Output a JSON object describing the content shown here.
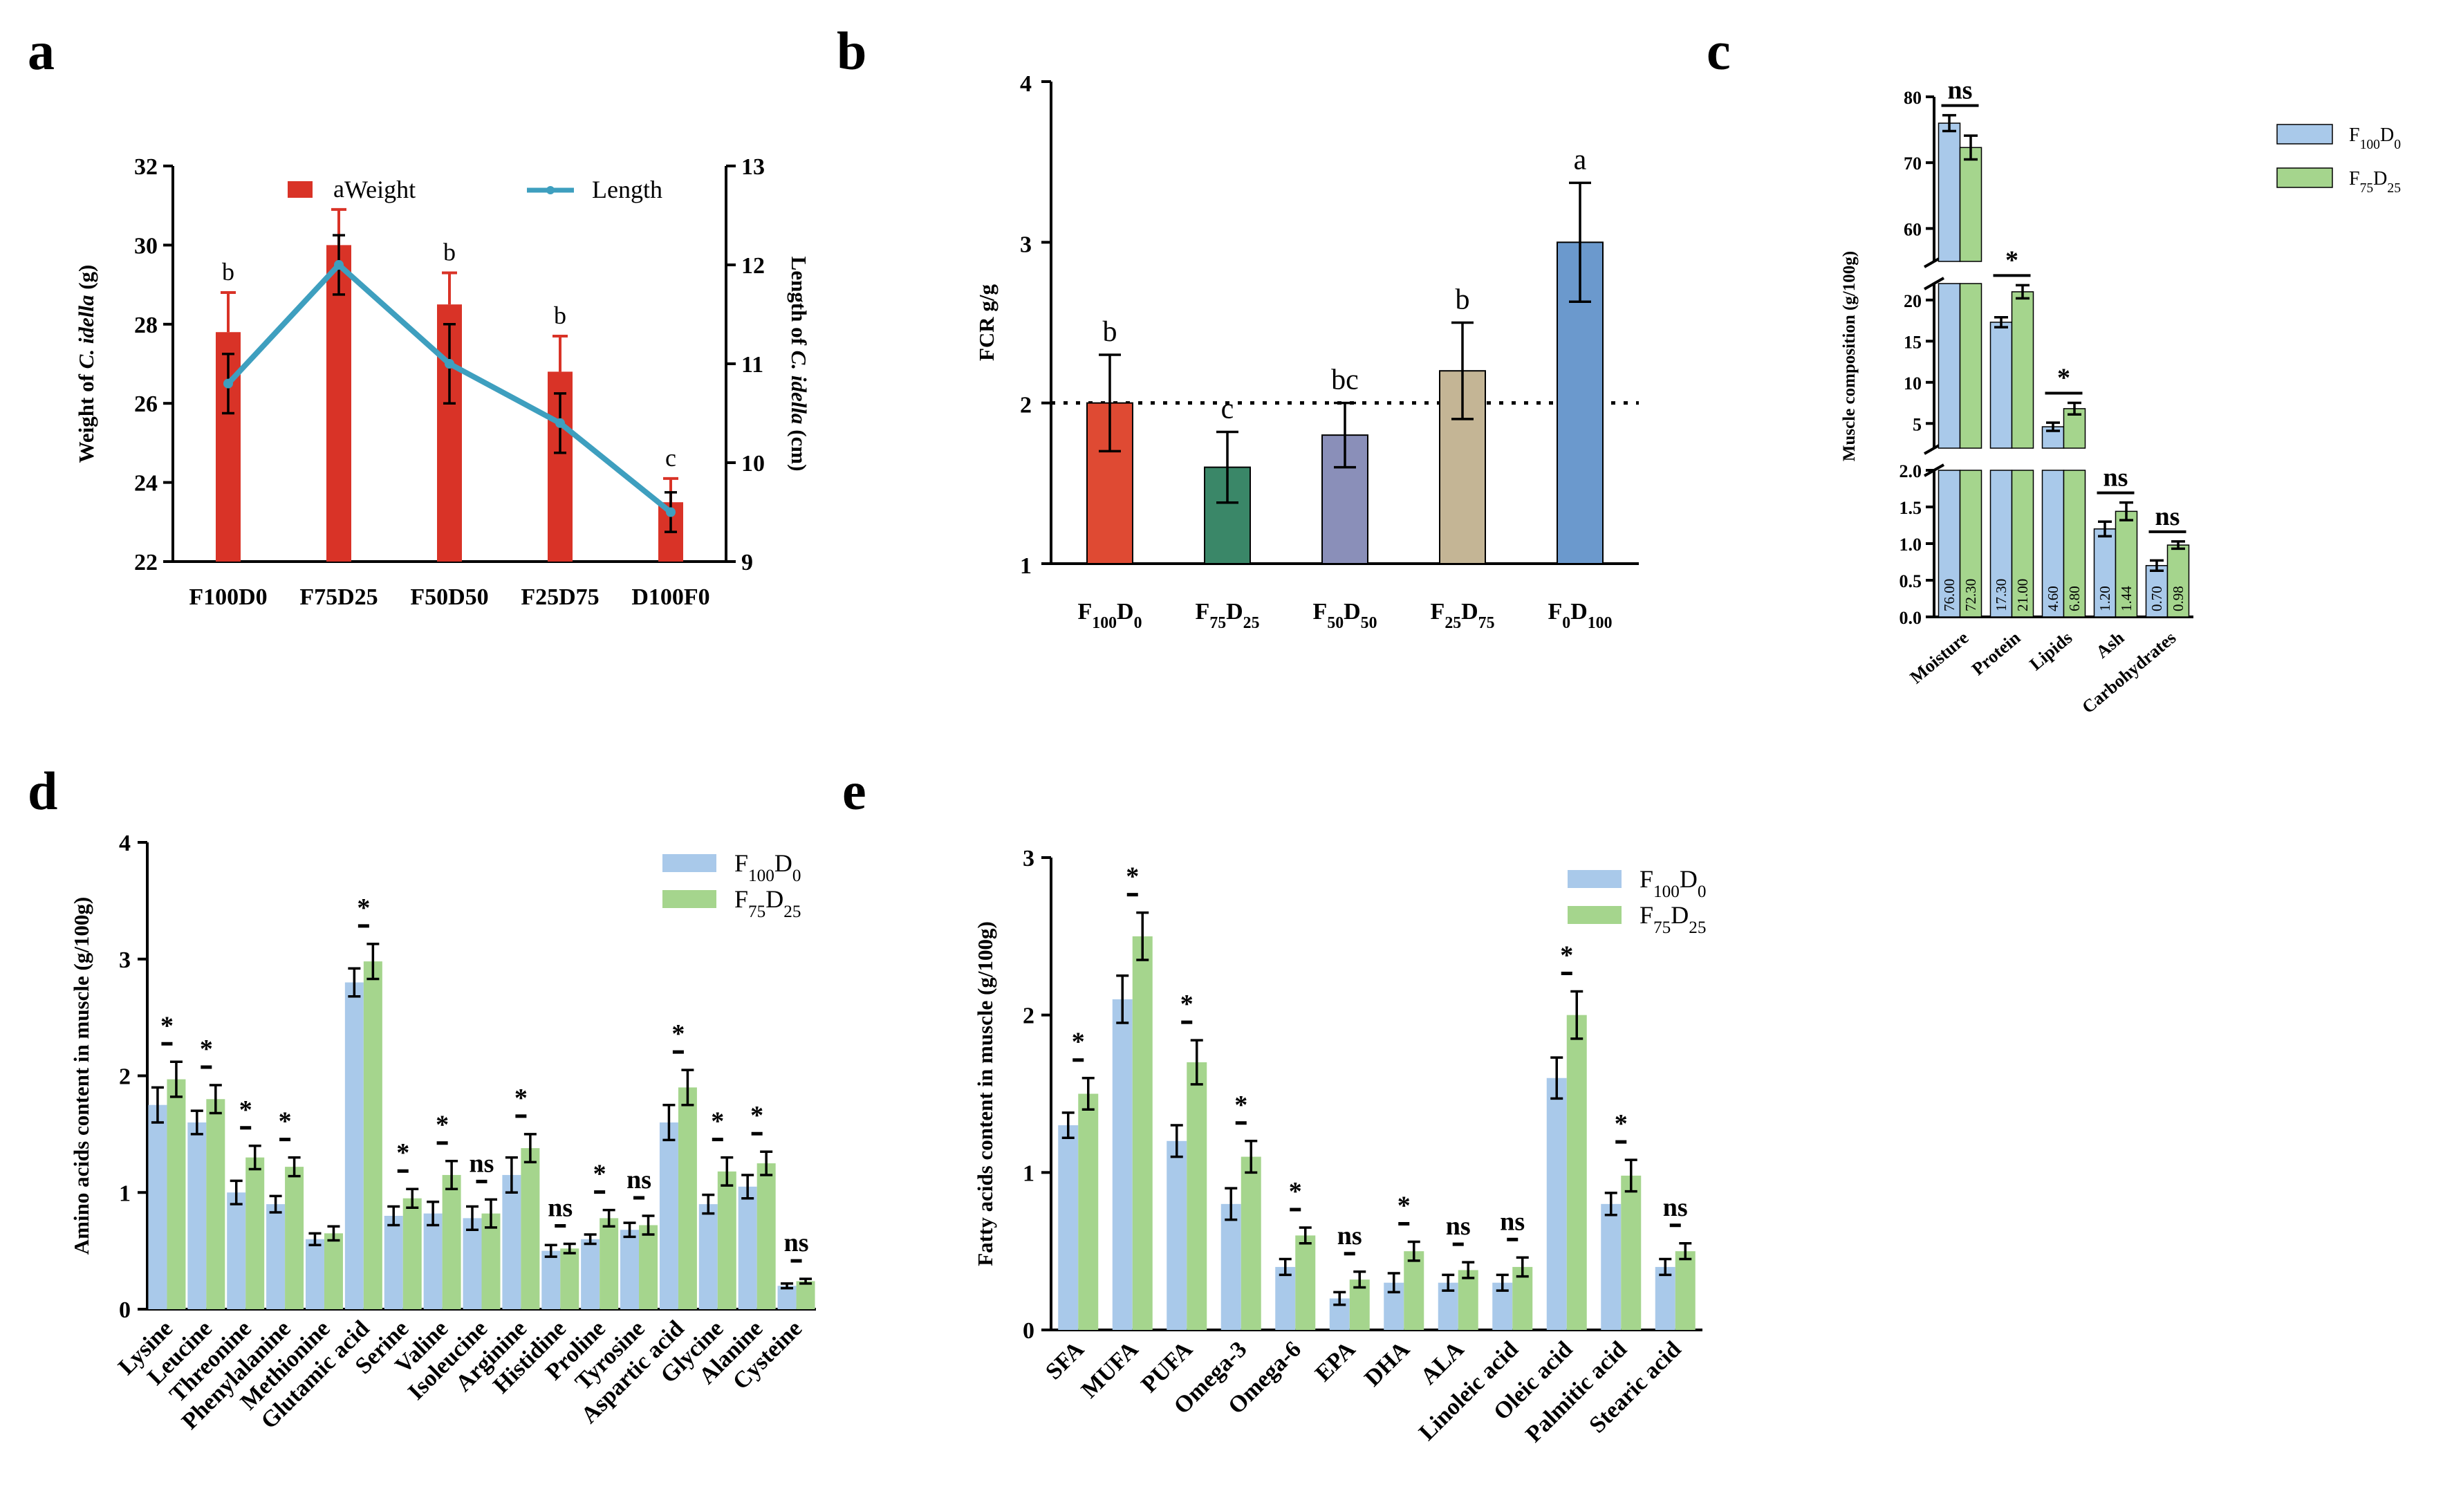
{
  "colors": {
    "red": "#d93327",
    "line": "#3e9fbf",
    "blue": "#a9c9ea",
    "green": "#a5d58d",
    "bar_b": [
      "#df4a33",
      "#3a8768",
      "#8a8fb9",
      "#c4b595",
      "#6b99cd"
    ]
  },
  "panels": {
    "a": "a",
    "b": "b",
    "c": "c",
    "d": "d",
    "e": "e"
  },
  "chart_data": [
    {
      "panel": "a",
      "type": "bar+line",
      "categories": [
        "F100D0",
        "F75D25",
        "F50D50",
        "F25D75",
        "D100F0"
      ],
      "series": [
        {
          "name": "Weight",
          "type": "bar",
          "axis": "left",
          "values": [
            27.8,
            30.0,
            28.5,
            26.8,
            23.5
          ],
          "errors": [
            1.0,
            0.9,
            0.8,
            0.9,
            0.6
          ],
          "letters": [
            "b",
            "a",
            "b",
            "b",
            "c"
          ]
        },
        {
          "name": "Length",
          "type": "line",
          "axis": "right",
          "values": [
            10.8,
            12.0,
            11.0,
            10.4,
            9.5
          ],
          "errors": [
            0.3,
            0.3,
            0.4,
            0.3,
            0.2
          ]
        }
      ],
      "ylabel": "Weight of C. idella (g)",
      "ylabel_pre": "Weight of ",
      "ylabel_it": "C. idella",
      "ylabel_post": " (g)",
      "y2label": "Length of C. idella (cm)",
      "y2label_pre": "Length of ",
      "y2label_it": "C. idella",
      "y2label_post": " (cm)",
      "ylim": [
        22,
        32
      ],
      "yticks": [
        "22",
        "24",
        "26",
        "28",
        "30",
        "32"
      ],
      "y2lim": [
        9,
        13
      ],
      "y2ticks": [
        "9",
        "10",
        "11",
        "12",
        "13"
      ]
    },
    {
      "panel": "b",
      "type": "bar",
      "categories": [
        {
          "m1": "F",
          "s1": "100",
          "m2": "D",
          "s2": "0"
        },
        {
          "m1": "F",
          "s1": "75",
          "m2": "D",
          "s2": "25"
        },
        {
          "m1": "F",
          "s1": "50",
          "m2": "D",
          "s2": "50"
        },
        {
          "m1": "F",
          "s1": "25",
          "m2": "D",
          "s2": "75"
        },
        {
          "m1": "F",
          "s1": "0",
          "m2": "D",
          "s2": "100"
        }
      ],
      "values": [
        2.0,
        1.6,
        1.8,
        2.2,
        3.0
      ],
      "errors": [
        0.3,
        0.22,
        0.2,
        0.3,
        0.37
      ],
      "letters": [
        "b",
        "c",
        "bc",
        "b",
        "a"
      ],
      "ylabel": "FCR g/g",
      "ylim": [
        1,
        4
      ],
      "yticks": [
        "1",
        "2",
        "3",
        "4"
      ],
      "reference_line": 2
    },
    {
      "panel": "c",
      "type": "grouped_bar",
      "categories": [
        "Moisture",
        "Protein",
        "Lipids",
        "Ash",
        "Carbohydrates"
      ],
      "series": [
        {
          "name": {
            "m1": "F",
            "s1": "100",
            "m2": "D",
            "s2": "0"
          },
          "values": [
            76.0,
            17.3,
            4.6,
            1.2,
            0.7
          ],
          "errors": [
            1.2,
            0.6,
            0.5,
            0.1,
            0.07
          ],
          "labels": [
            "76.00",
            "17.30",
            "4.60",
            "1.20",
            "0.70"
          ]
        },
        {
          "name": {
            "m1": "F",
            "s1": "75",
            "m2": "D",
            "s2": "25"
          },
          "values": [
            72.3,
            21.0,
            6.8,
            1.44,
            0.98
          ],
          "errors": [
            1.8,
            0.8,
            0.7,
            0.12,
            0.05
          ],
          "labels": [
            "72.30",
            "21.00",
            "6.80",
            "1.44",
            "0.98"
          ]
        }
      ],
      "significance": [
        "ns",
        "*",
        "*",
        "ns",
        "ns"
      ],
      "ylabel": "Muscle composition (g/100g)",
      "segments": [
        {
          "range": [
            0,
            2
          ],
          "ticks": [
            "0.0",
            "0.5",
            "1.0",
            "1.5",
            "2.0"
          ]
        },
        {
          "range": [
            2,
            22
          ],
          "ticks": [
            "5",
            "10",
            "15",
            "20"
          ]
        },
        {
          "range": [
            55,
            80
          ],
          "ticks": [
            "60",
            "70",
            "80"
          ]
        }
      ]
    },
    {
      "panel": "d",
      "type": "grouped_bar",
      "categories": [
        "Lysine",
        "Leucine",
        "Threonine",
        "Phenylalanine",
        "Methionine",
        "Glutamic acid",
        "Serine",
        "Valine",
        "Isoleucine",
        "Arginine",
        "Histidine",
        "Proline",
        "Tyrosine",
        "Aspartic acid",
        "Glycine",
        "Alanine",
        "Cysteine"
      ],
      "series": [
        {
          "name": {
            "m1": "F",
            "s1": "100",
            "m2": "D",
            "s2": "0"
          },
          "values": [
            1.75,
            1.6,
            1.0,
            0.9,
            0.6,
            2.8,
            0.8,
            0.82,
            0.78,
            1.15,
            0.5,
            0.6,
            0.68,
            1.6,
            0.9,
            1.05,
            0.2
          ],
          "errors": [
            0.15,
            0.1,
            0.1,
            0.07,
            0.05,
            0.12,
            0.08,
            0.1,
            0.1,
            0.15,
            0.05,
            0.04,
            0.06,
            0.15,
            0.08,
            0.1,
            0.02
          ]
        },
        {
          "name": {
            "m1": "F",
            "s1": "75",
            "m2": "D",
            "s2": "25"
          },
          "values": [
            1.97,
            1.8,
            1.3,
            1.22,
            0.65,
            2.98,
            0.95,
            1.15,
            0.82,
            1.38,
            0.52,
            0.78,
            0.72,
            1.9,
            1.18,
            1.25,
            0.24
          ],
          "errors": [
            0.15,
            0.12,
            0.1,
            0.08,
            0.06,
            0.15,
            0.08,
            0.12,
            0.12,
            0.12,
            0.04,
            0.07,
            0.08,
            0.15,
            0.12,
            0.1,
            0.02
          ]
        }
      ],
      "significance": [
        "*",
        "*",
        "*",
        "*",
        "",
        "*",
        "*",
        "*",
        "ns",
        "*",
        "ns",
        "*",
        "ns",
        "*",
        "*",
        "*",
        "ns"
      ],
      "ylabel": "Amino acids content in muscle (g/100g)",
      "ylim": [
        0,
        4
      ],
      "yticks": [
        "0",
        "1",
        "2",
        "3",
        "4"
      ]
    },
    {
      "panel": "e",
      "type": "grouped_bar",
      "categories": [
        "SFA",
        "MUFA",
        "PUFA",
        "Omega-3",
        "Omega-6",
        "EPA",
        "DHA",
        "ALA",
        "Linoleic acid",
        "Oleic acid",
        "Palmitic acid",
        "Stearic acid"
      ],
      "series": [
        {
          "name": {
            "m1": "F",
            "s1": "100",
            "m2": "D",
            "s2": "0"
          },
          "values": [
            1.3,
            2.1,
            1.2,
            0.8,
            0.4,
            0.2,
            0.3,
            0.3,
            0.3,
            1.6,
            0.8,
            0.4
          ],
          "errors": [
            0.08,
            0.15,
            0.1,
            0.1,
            0.05,
            0.04,
            0.06,
            0.05,
            0.05,
            0.13,
            0.07,
            0.05
          ]
        },
        {
          "name": {
            "m1": "F",
            "s1": "75",
            "m2": "D",
            "s2": "25"
          },
          "values": [
            1.5,
            2.5,
            1.7,
            1.1,
            0.6,
            0.32,
            0.5,
            0.38,
            0.4,
            2.0,
            0.98,
            0.5
          ],
          "errors": [
            0.1,
            0.15,
            0.14,
            0.1,
            0.05,
            0.05,
            0.06,
            0.05,
            0.06,
            0.15,
            0.1,
            0.05
          ]
        }
      ],
      "significance": [
        "*",
        "*",
        "*",
        "*",
        "*",
        "ns",
        "*",
        "ns",
        "ns",
        "*",
        "*",
        "ns"
      ],
      "ylabel": "Fatty acids content in muscle (g/100g)",
      "ylim": [
        0,
        3
      ],
      "yticks": [
        "0",
        "1",
        "2",
        "3"
      ]
    }
  ]
}
